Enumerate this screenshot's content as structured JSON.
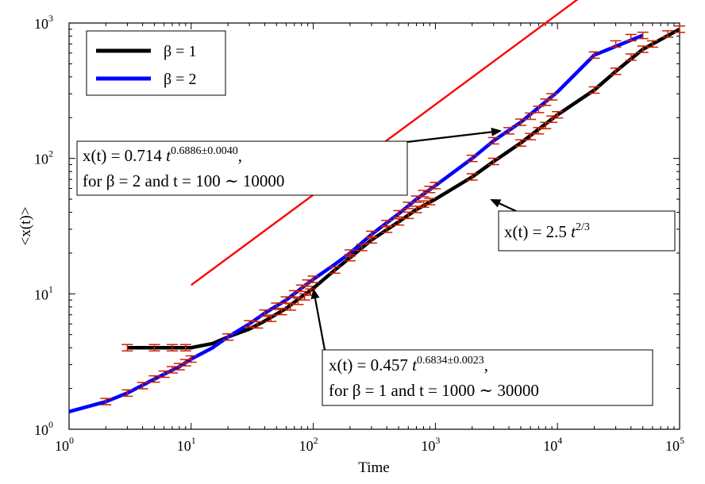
{
  "chart_data": {
    "type": "line",
    "scale": {
      "x": "log",
      "y": "log"
    },
    "xlim": [
      1,
      100000
    ],
    "ylim": [
      1,
      1000
    ],
    "xlabel": "Time",
    "ylabel": "<x(t)>",
    "x_ticks": [
      {
        "base": "10",
        "exp": "0",
        "value": 1
      },
      {
        "base": "10",
        "exp": "1",
        "value": 10
      },
      {
        "base": "10",
        "exp": "2",
        "value": 100
      },
      {
        "base": "10",
        "exp": "3",
        "value": 1000
      },
      {
        "base": "10",
        "exp": "4",
        "value": 10000
      },
      {
        "base": "10",
        "exp": "5",
        "value": 100000
      }
    ],
    "y_ticks": [
      {
        "base": "10",
        "exp": "0",
        "value": 1
      },
      {
        "base": "10",
        "exp": "1",
        "value": 10
      },
      {
        "base": "10",
        "exp": "2",
        "value": 100
      },
      {
        "base": "10",
        "exp": "3",
        "value": 1000
      }
    ],
    "legend": {
      "placement": "top-left",
      "entries": [
        {
          "label": "β = 1",
          "color": "#000000"
        },
        {
          "label": "β = 2",
          "color": "#0000ff"
        }
      ]
    },
    "series": [
      {
        "name": "β = 1",
        "color": "#000000",
        "points": [
          [
            3,
            4
          ],
          [
            5,
            4
          ],
          [
            10,
            4
          ],
          [
            15,
            4.3
          ],
          [
            20,
            4.8
          ],
          [
            30,
            5.5
          ],
          [
            40,
            6.3
          ],
          [
            60,
            7.8
          ],
          [
            80,
            9.5
          ],
          [
            100,
            11
          ],
          [
            150,
            15
          ],
          [
            200,
            18.5
          ],
          [
            300,
            25
          ],
          [
            500,
            34
          ],
          [
            700,
            42
          ],
          [
            1000,
            50
          ],
          [
            2000,
            73
          ],
          [
            3000,
            95
          ],
          [
            5000,
            130
          ],
          [
            10000,
            210
          ],
          [
            20000,
            320
          ],
          [
            30000,
            440
          ],
          [
            50000,
            640
          ],
          [
            100000,
            900
          ]
        ]
      },
      {
        "name": "β = 2",
        "color": "#0000ff",
        "points": [
          [
            1,
            1.35
          ],
          [
            2,
            1.6
          ],
          [
            3,
            1.85
          ],
          [
            5,
            2.35
          ],
          [
            8,
            2.9
          ],
          [
            10,
            3.3
          ],
          [
            15,
            4
          ],
          [
            20,
            4.8
          ],
          [
            30,
            6
          ],
          [
            40,
            7.2
          ],
          [
            60,
            9
          ],
          [
            80,
            11
          ],
          [
            100,
            12.8
          ],
          [
            150,
            16.5
          ],
          [
            200,
            20
          ],
          [
            300,
            27.5
          ],
          [
            500,
            39
          ],
          [
            700,
            50
          ],
          [
            1000,
            63
          ],
          [
            2000,
            100
          ],
          [
            3000,
            135
          ],
          [
            5000,
            185
          ],
          [
            10000,
            310
          ],
          [
            20000,
            580
          ],
          [
            50000,
            810
          ]
        ]
      }
    ],
    "error_bar_color": "#cc2200",
    "error_bars": {
      "β = 1": [
        [
          3,
          4
        ],
        [
          5,
          4
        ],
        [
          7,
          4
        ],
        [
          9,
          4
        ],
        [
          20,
          4.8
        ],
        [
          35,
          5.9
        ],
        [
          45,
          6.6
        ],
        [
          55,
          7.4
        ],
        [
          65,
          8
        ],
        [
          75,
          8.8
        ],
        [
          85,
          9.5
        ],
        [
          95,
          10.3
        ],
        [
          150,
          15
        ],
        [
          200,
          18.5
        ],
        [
          250,
          22
        ],
        [
          300,
          25
        ],
        [
          400,
          30
        ],
        [
          500,
          34
        ],
        [
          600,
          38
        ],
        [
          700,
          42
        ],
        [
          800,
          46
        ],
        [
          900,
          48
        ],
        [
          2000,
          73
        ],
        [
          3000,
          95
        ],
        [
          5000,
          130
        ],
        [
          6000,
          145
        ],
        [
          7000,
          160
        ],
        [
          8000,
          175
        ],
        [
          9000,
          195
        ],
        [
          10000,
          210
        ],
        [
          20000,
          320
        ],
        [
          30000,
          440
        ],
        [
          40000,
          560
        ],
        [
          50000,
          640
        ],
        [
          60000,
          700
        ],
        [
          80000,
          830
        ],
        [
          100000,
          900
        ]
      ],
      "β = 2": [
        [
          2,
          1.6
        ],
        [
          3,
          1.85
        ],
        [
          4,
          2.1
        ],
        [
          5,
          2.35
        ],
        [
          6,
          2.55
        ],
        [
          7,
          2.75
        ],
        [
          8,
          2.9
        ],
        [
          9,
          3.1
        ],
        [
          10,
          3.3
        ],
        [
          30,
          6
        ],
        [
          40,
          7.2
        ],
        [
          50,
          8.1
        ],
        [
          60,
          9
        ],
        [
          70,
          10
        ],
        [
          80,
          11
        ],
        [
          90,
          12
        ],
        [
          100,
          12.8
        ],
        [
          200,
          20
        ],
        [
          300,
          27.5
        ],
        [
          400,
          33
        ],
        [
          500,
          39
        ],
        [
          600,
          45
        ],
        [
          700,
          50
        ],
        [
          800,
          55
        ],
        [
          900,
          59
        ],
        [
          1000,
          63
        ],
        [
          2000,
          100
        ],
        [
          3000,
          135
        ],
        [
          4000,
          160
        ],
        [
          5000,
          185
        ],
        [
          6000,
          205
        ],
        [
          7000,
          230
        ],
        [
          8000,
          260
        ],
        [
          9000,
          285
        ],
        [
          20000,
          580
        ],
        [
          30000,
          700
        ],
        [
          40000,
          780
        ],
        [
          50000,
          810
        ]
      ]
    },
    "fit_line": {
      "label": "x(t) = 2.5 t^{2/3}",
      "color": "#ff0000",
      "coef": 2.5,
      "exponent": 0.6667,
      "x_range": [
        10,
        100000
      ]
    },
    "annotations": [
      {
        "id": "ann-beta2",
        "line1_main": "x(t) = 0.714 ",
        "line1_var": "t",
        "line1_sup": "0.6886±0.0040",
        "line1_tail": ",",
        "line2": "for β = 2 and t = 100 ∼ 10000",
        "arrow_to": [
          3500,
          160
        ]
      },
      {
        "id": "ann-fit",
        "line1_main": "x(t) = 2.5 ",
        "line1_var": "t",
        "line1_sup": "2/3",
        "arrow_to": [
          2800,
          50
        ]
      },
      {
        "id": "ann-beta1",
        "line1_main": "x(t) = 0.457 ",
        "line1_var": "t",
        "line1_sup": "0.6834±0.0023",
        "line1_tail": ",",
        "line2": "for β = 1 and t = 1000 ∼ 30000",
        "arrow_to": [
          100,
          11
        ]
      }
    ]
  }
}
